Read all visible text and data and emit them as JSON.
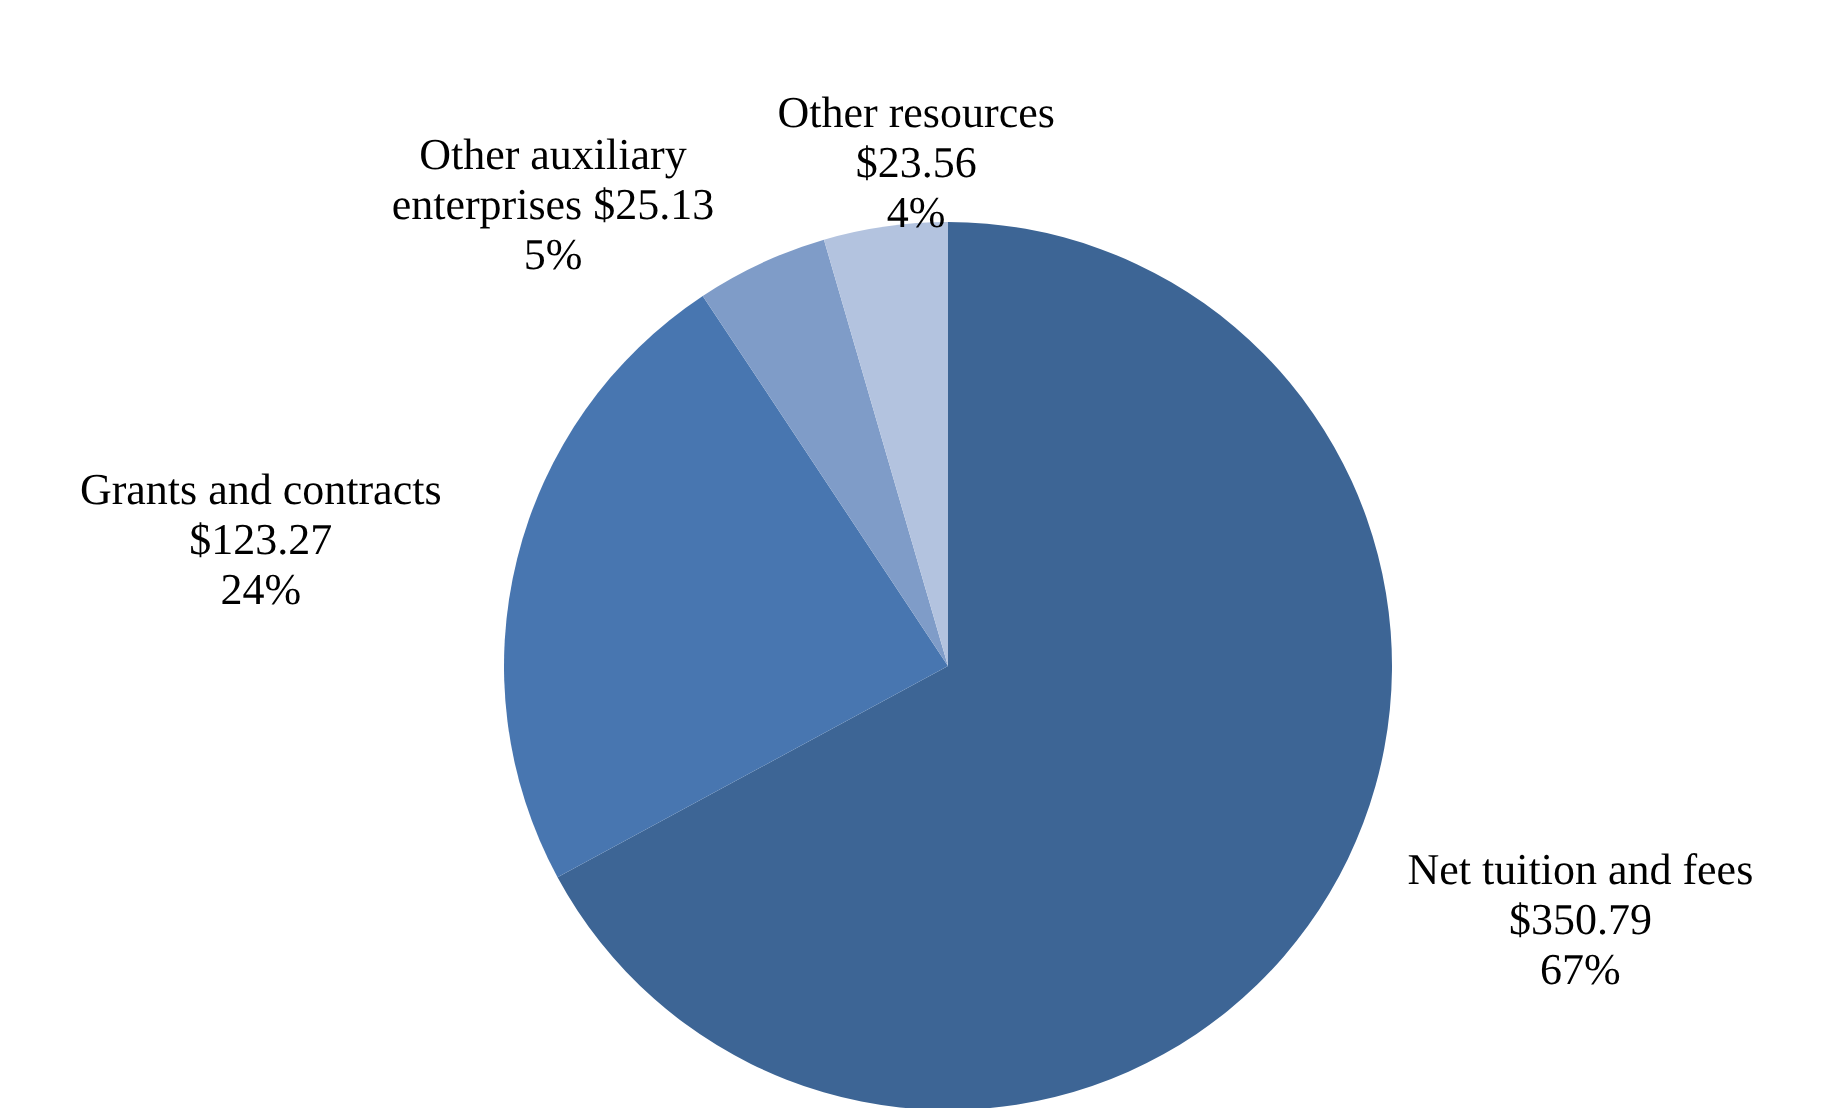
{
  "chart_data": {
    "type": "pie",
    "categories": [
      "Net tuition and fees",
      "Grants and contracts",
      "Other auxiliary enterprises",
      "Other resources"
    ],
    "values": [
      350.79,
      123.27,
      25.13,
      23.56
    ],
    "colors": [
      "#3d6595",
      "#4876b0",
      "#7f9cc8",
      "#b3c3df"
    ],
    "value_labels": [
      "$350.79\n67%",
      "$123.27\n24%",
      "$25.13\n5%",
      "$23.56\n4%"
    ]
  }
}
